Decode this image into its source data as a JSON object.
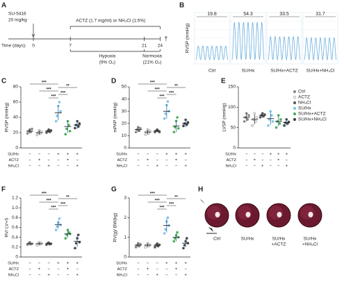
{
  "panel_labels": [
    "A",
    "B",
    "C",
    "D",
    "E",
    "F",
    "G",
    "H"
  ],
  "timeline": {
    "drug1": [
      "SU-5416",
      "20 mg/kg"
    ],
    "drug2": "ACTZ (1.7 mg/ml) or NH₄Cl (1.5%)",
    "axis_label": "Time (days):",
    "days": [
      0,
      7,
      21,
      24
    ],
    "phase1": [
      "Hypoxia",
      "(9% O₂)"
    ],
    "phase2": [
      "Normoxia",
      "(21% O₂)"
    ],
    "end": "†"
  },
  "rvsp_traces": {
    "ylabel": "RVSP (mmHg)",
    "values": [
      19.8,
      54.3,
      33.5,
      31.7
    ],
    "categories": [
      "Ctrl",
      "SU/Hx",
      "SU/Hx+ACTZ",
      "SU/Hx+NH₄Cl"
    ]
  },
  "groups": [
    {
      "name": "Ctrl",
      "color": "#8a8a8a",
      "hollow": false
    },
    {
      "name": "ACTZ",
      "color": "#8a8a8a",
      "hollow": true
    },
    {
      "name": "NH₄Cl",
      "color": "#5a5a5a",
      "hollow": false
    },
    {
      "name": "SU/Hx",
      "color": "#7cc3ea",
      "hollow": false
    },
    {
      "name": "SU/Hx+ACTZ",
      "color": "#4caf50",
      "hollow": false
    },
    {
      "name": "SU/Hx+NH₄Cl",
      "color": "#444444",
      "hollow": false
    }
  ],
  "design": {
    "rows": [
      "SU/Hx",
      "ACTZ",
      "NH₄Cl"
    ],
    "signs": [
      [
        "−",
        "−",
        "−",
        "+",
        "+",
        "+"
      ],
      [
        "−",
        "+",
        "−",
        "−",
        "+",
        "−"
      ],
      [
        "−",
        "−",
        "+",
        "−",
        "−",
        "+"
      ]
    ]
  },
  "chart_data": [
    {
      "type": "dotplot",
      "ylabel": "RVSP (mmHg)",
      "ylim": [
        0,
        80
      ],
      "yticks": [
        0,
        20,
        40,
        60,
        80
      ],
      "means": [
        22,
        20,
        22,
        46,
        28,
        30
      ],
      "sd": [
        3,
        3,
        2,
        10,
        8,
        5
      ],
      "points": [
        [
          19,
          22,
          24,
          21,
          25
        ],
        [
          17,
          20,
          23,
          19,
          21
        ],
        [
          20,
          22,
          24,
          21,
          23
        ],
        [
          35,
          42,
          55,
          60,
          48
        ],
        [
          18,
          25,
          35,
          30,
          22
        ],
        [
          26,
          30,
          35,
          28,
          32
        ]
      ],
      "significance": [
        "***",
        "**",
        "***",
        "***",
        "***"
      ]
    },
    {
      "type": "dotplot",
      "ylabel": "mPAP (mmHg)",
      "ylim": [
        0,
        50
      ],
      "yticks": [
        0,
        10,
        20,
        30,
        40,
        50
      ],
      "means": [
        15,
        13,
        14,
        30,
        18,
        20
      ],
      "sd": [
        2,
        2,
        1,
        6,
        5,
        3
      ],
      "points": [
        [
          13,
          15,
          17,
          14,
          16
        ],
        [
          11,
          13,
          15,
          12,
          14
        ],
        [
          13,
          14,
          15,
          14,
          13
        ],
        [
          24,
          28,
          35,
          38,
          30
        ],
        [
          13,
          17,
          22,
          25,
          16
        ],
        [
          18,
          20,
          23,
          19,
          21
        ]
      ],
      "significance": [
        "***",
        "**",
        "***",
        "***",
        "***"
      ]
    },
    {
      "type": "dotplot",
      "ylabel": "LVSP (mmHg)",
      "ylim": [
        0,
        150
      ],
      "yticks": [
        0,
        50,
        100,
        150
      ],
      "means": [
        75,
        70,
        80,
        72,
        65,
        62
      ],
      "sd": [
        10,
        12,
        6,
        15,
        12,
        8
      ],
      "points": [
        [
          65,
          75,
          85,
          70,
          80
        ],
        [
          55,
          70,
          85,
          65,
          75
        ],
        [
          75,
          80,
          85,
          78,
          82
        ],
        [
          55,
          70,
          90,
          80,
          65
        ],
        [
          50,
          65,
          80,
          60,
          70
        ],
        [
          55,
          62,
          70,
          60,
          64
        ]
      ],
      "significance": []
    },
    {
      "type": "dotplot",
      "ylabel": "RV/ LV+S",
      "ylim": [
        0,
        1.2
      ],
      "yticks": [
        0,
        0.2,
        0.4,
        0.6,
        0.8,
        {
          "value": 1,
          "label": "1.0"
        },
        1.2
      ],
      "means": [
        0.27,
        0.27,
        0.27,
        0.66,
        0.47,
        0.32
      ],
      "sd": [
        0.03,
        0.03,
        0.03,
        0.08,
        0.08,
        0.12
      ],
      "points": [
        [
          0.25,
          0.28,
          0.3,
          0.26,
          0.27
        ],
        [
          0.24,
          0.27,
          0.3,
          0.26,
          0.28
        ],
        [
          0.25,
          0.28,
          0.29,
          0.26,
          0.27
        ],
        [
          0.55,
          0.62,
          0.7,
          0.78,
          0.65
        ],
        [
          0.38,
          0.45,
          0.55,
          0.5,
          0.47
        ],
        [
          0.18,
          0.28,
          0.38,
          0.45,
          0.3
        ]
      ],
      "significance": [
        "***",
        "**",
        "***",
        "***",
        "***"
      ]
    },
    {
      "type": "dotplot",
      "ylabel": "RV(g)/ BW(kg)",
      "ylim": [
        0,
        3
      ],
      "yticks": [
        0,
        1,
        2,
        3
      ],
      "means": [
        0.6,
        0.6,
        0.6,
        1.6,
        1.0,
        0.7
      ],
      "sd": [
        0.1,
        0.1,
        0.1,
        0.35,
        0.2,
        0.2
      ],
      "points": [
        [
          0.5,
          0.6,
          0.7,
          0.55,
          0.65
        ],
        [
          0.5,
          0.6,
          0.7,
          0.55,
          0.62
        ],
        [
          0.5,
          0.6,
          0.68,
          0.55,
          0.62
        ],
        [
          1.2,
          1.4,
          1.8,
          2.0,
          1.6
        ],
        [
          0.8,
          0.95,
          1.1,
          1.25,
          1.0
        ],
        [
          0.45,
          0.6,
          0.8,
          0.95,
          0.7
        ]
      ],
      "significance": [
        "***",
        "**",
        "***",
        "***",
        "***"
      ]
    }
  ],
  "hearts": {
    "labels": [
      [
        "Ctrl"
      ],
      [
        "SU/Hx"
      ],
      [
        "SU/Hx",
        "+ACTZ"
      ],
      [
        "SU/Hx",
        "+NH₄Cl"
      ]
    ]
  }
}
